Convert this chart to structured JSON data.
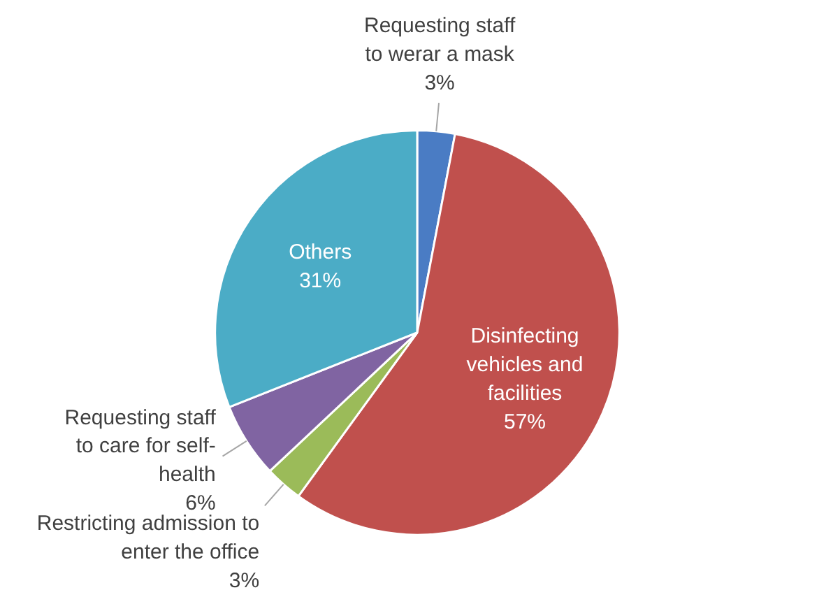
{
  "chart_data": {
    "type": "pie",
    "categories": [
      "Requesting staff to werar a mask",
      "Disinfecting vehicles and facilities",
      "Restricting admission to enter the office",
      "Requesting staff to care for self-health",
      "Others"
    ],
    "values": [
      3,
      57,
      3,
      6,
      31
    ],
    "value_labels": [
      "3%",
      "57%",
      "3%",
      "6%",
      "31%"
    ],
    "colors": [
      "#4a7cc4",
      "#c0504d",
      "#9bbb59",
      "#8064a2",
      "#4bacc6"
    ]
  }
}
